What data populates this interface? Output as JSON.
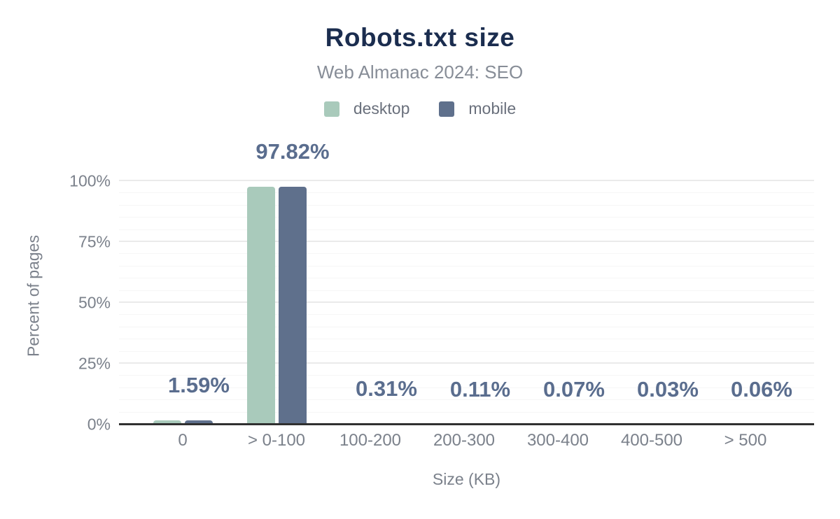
{
  "colors": {
    "background": "#ffffff",
    "title": "#1b2d4f",
    "subtitle": "#878d97",
    "legend_text": "#6a707c",
    "axis_text": "#7b818b",
    "data_label": "#5a6d8e",
    "axis_line": "#303030",
    "grid_major": "#eaeaea",
    "grid_minor": "#f6f6f6",
    "desktop": "#a9cabb",
    "mobile": "#5f708c"
  },
  "chart_data": {
    "type": "bar",
    "title": "Robots.txt size",
    "subtitle": "Web Almanac 2024: SEO",
    "categories": [
      "0",
      "> 0-100",
      "100-200",
      "200-300",
      "300-400",
      "400-500",
      "> 500"
    ],
    "series": [
      {
        "name": "desktop",
        "color": "#a9cabb",
        "values": [
          1.59,
          97.82,
          0.31,
          0.11,
          0.07,
          0.03,
          0.06
        ]
      },
      {
        "name": "mobile",
        "color": "#5f708c",
        "values": [
          1.59,
          97.82,
          0.31,
          0.11,
          0.07,
          0.03,
          0.06
        ]
      }
    ],
    "data_labels": [
      "1.59%",
      "97.82%",
      "0.31%",
      "0.11%",
      "0.07%",
      "0.03%",
      "0.06%"
    ],
    "xlabel": "Size (KB)",
    "ylabel": "Percent of pages",
    "ylim": [
      0,
      100
    ],
    "yticks": [
      {
        "label": "0%",
        "value": 0
      },
      {
        "label": "25%",
        "value": 25
      },
      {
        "label": "50%",
        "value": 50
      },
      {
        "label": "75%",
        "value": 75
      },
      {
        "label": "100%",
        "value": 100
      }
    ],
    "grid": {
      "minor_step": 5,
      "major_step": 25
    },
    "legend_position": "top"
  }
}
